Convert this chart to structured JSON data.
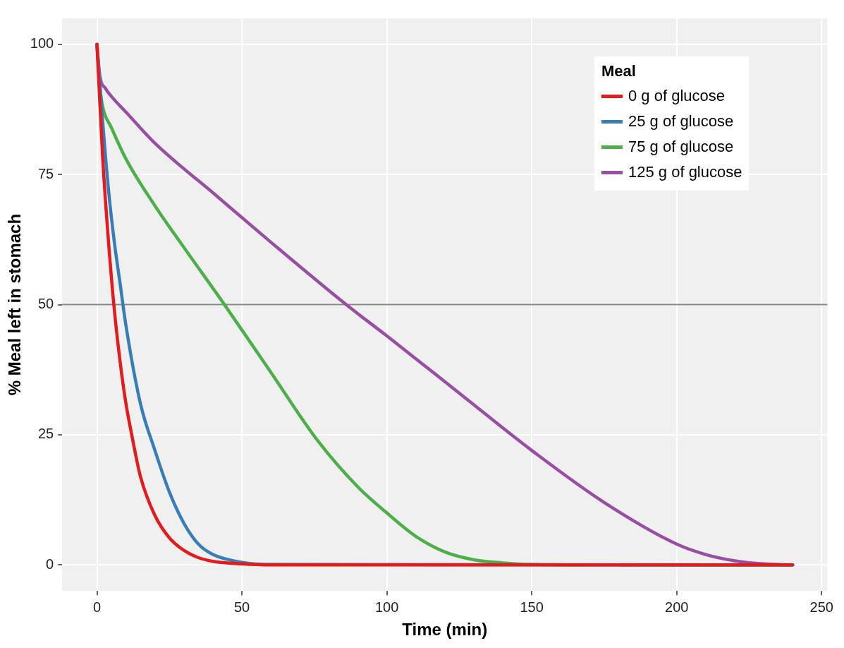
{
  "chart_data": {
    "type": "line",
    "xlabel": "Time (min)",
    "ylabel": "% Meal left in stomach",
    "legend_title": "Meal",
    "legend": "top right",
    "xlim": [
      -12,
      252
    ],
    "xticks": [
      0,
      50,
      100,
      150,
      200,
      250
    ],
    "ylim": [
      -5,
      105
    ],
    "yticks": [
      0,
      25,
      50,
      75,
      100
    ],
    "grid": true,
    "marker": "none",
    "line_style": "solid",
    "ref_lines": [
      {
        "axis": "y",
        "value": 50,
        "color": "#888888"
      }
    ],
    "series": [
      {
        "name": "0 g of glucose",
        "color": "#e41a1c",
        "x": [
          0,
          2,
          4,
          6,
          8,
          10,
          12,
          15,
          20,
          25,
          30,
          35,
          40,
          50,
          60,
          240
        ],
        "values": [
          100,
          78,
          62,
          49,
          39,
          31,
          25,
          17,
          9.5,
          5.2,
          2.8,
          1.4,
          0.7,
          0.2,
          0,
          0
        ]
      },
      {
        "name": "25 g of glucose",
        "color": "#377eb8",
        "x": [
          0,
          2,
          4,
          6,
          8,
          10,
          15,
          20,
          25,
          30,
          35,
          40,
          50,
          60,
          240
        ],
        "values": [
          100,
          85,
          72,
          62,
          54,
          46,
          31,
          22,
          14,
          8,
          4,
          2,
          0.5,
          0.1,
          0
        ]
      },
      {
        "name": "75 g of glucose",
        "color": "#4daf4a",
        "x": [
          0,
          1,
          2,
          5,
          10,
          20,
          30,
          44,
          60,
          76,
          90,
          100,
          110,
          120,
          130,
          140,
          150,
          175,
          240
        ],
        "values": [
          100,
          92,
          88,
          84,
          78,
          69,
          61,
          50,
          37,
          24,
          15,
          10,
          5.5,
          2.5,
          1,
          0.4,
          0.1,
          0,
          0
        ]
      },
      {
        "name": "125 g of glucose",
        "color": "#984ea3",
        "x": [
          0,
          1,
          3,
          5,
          10,
          20,
          40,
          60,
          86,
          100,
          125,
          150,
          175,
          200,
          210,
          220,
          230,
          240
        ],
        "values": [
          100,
          94,
          91.5,
          90,
          87,
          81,
          71.5,
          62,
          50,
          44,
          33,
          22,
          12,
          4,
          2,
          0.8,
          0.2,
          0
        ]
      }
    ]
  }
}
